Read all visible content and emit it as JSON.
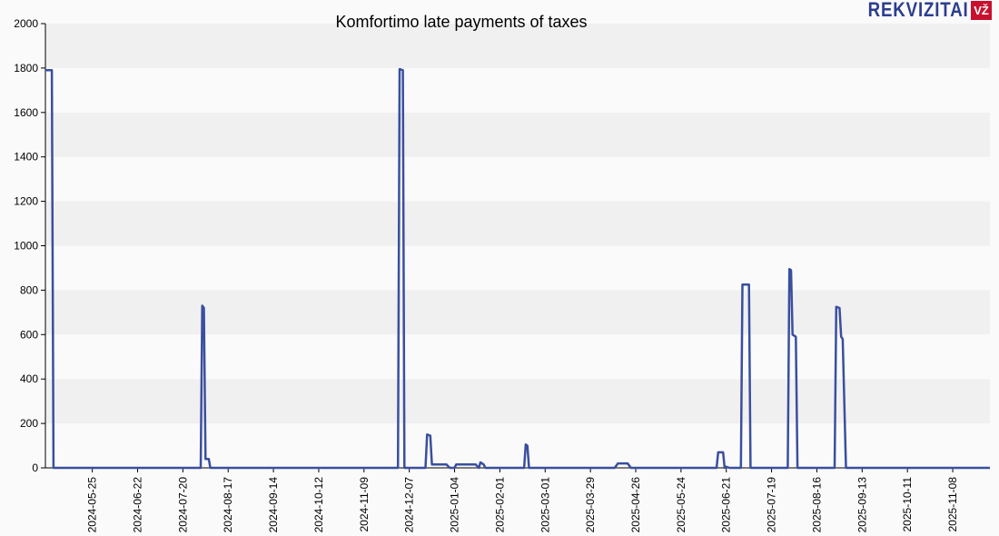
{
  "logo": {
    "text": "REKVIZITAI",
    "badge": "VŽ"
  },
  "chart_data": {
    "type": "line",
    "title": "Komfortimo late payments of taxes",
    "xlabel": "",
    "ylabel": "",
    "ylim": [
      0,
      2000
    ],
    "yticks": [
      0,
      200,
      400,
      600,
      800,
      1000,
      1200,
      1400,
      1600,
      1800,
      2000
    ],
    "xlim": [
      "2024-04-26",
      "2025-12-01"
    ],
    "xticks": [
      "2024-05-25",
      "2024-06-22",
      "2024-07-20",
      "2024-08-17",
      "2024-09-14",
      "2024-10-12",
      "2024-11-09",
      "2024-12-07",
      "2025-01-04",
      "2025-02-01",
      "2025-03-01",
      "2025-03-29",
      "2025-04-26",
      "2025-05-24",
      "2025-06-21",
      "2025-07-19",
      "2025-08-16",
      "2025-09-13",
      "2025-10-11",
      "2025-11-08"
    ],
    "grid": "horizontal bands",
    "line_color": "#3a4f9e",
    "series": [
      {
        "name": "",
        "points": [
          [
            "2024-04-26",
            1790
          ],
          [
            "2024-04-30",
            1790
          ],
          [
            "2024-05-01",
            0
          ],
          [
            "2024-07-31",
            0
          ],
          [
            "2024-08-01",
            730
          ],
          [
            "2024-08-02",
            720
          ],
          [
            "2024-08-03",
            40
          ],
          [
            "2024-08-05",
            40
          ],
          [
            "2024-08-06",
            0
          ],
          [
            "2024-11-30",
            0
          ],
          [
            "2024-12-01",
            1795
          ],
          [
            "2024-12-03",
            1790
          ],
          [
            "2024-12-04",
            0
          ],
          [
            "2024-12-17",
            0
          ],
          [
            "2024-12-18",
            150
          ],
          [
            "2024-12-20",
            145
          ],
          [
            "2024-12-21",
            15
          ],
          [
            "2024-12-30",
            15
          ],
          [
            "2025-01-01",
            0
          ],
          [
            "2025-01-04",
            0
          ],
          [
            "2025-01-05",
            15
          ],
          [
            "2025-01-17",
            15
          ],
          [
            "2025-01-19",
            0
          ],
          [
            "2025-01-20",
            25
          ],
          [
            "2025-01-22",
            15
          ],
          [
            "2025-01-23",
            0
          ],
          [
            "2025-02-16",
            0
          ],
          [
            "2025-02-17",
            105
          ],
          [
            "2025-02-18",
            100
          ],
          [
            "2025-02-19",
            0
          ],
          [
            "2025-04-13",
            0
          ],
          [
            "2025-04-15",
            20
          ],
          [
            "2025-04-21",
            20
          ],
          [
            "2025-04-23",
            0
          ],
          [
            "2025-06-15",
            0
          ],
          [
            "2025-06-16",
            70
          ],
          [
            "2025-06-19",
            70
          ],
          [
            "2025-06-20",
            0
          ],
          [
            "2025-06-21",
            5
          ],
          [
            "2025-06-23",
            0
          ],
          [
            "2025-06-30",
            0
          ],
          [
            "2025-07-01",
            825
          ],
          [
            "2025-07-05",
            825
          ],
          [
            "2025-07-06",
            0
          ],
          [
            "2025-07-29",
            0
          ],
          [
            "2025-07-30",
            895
          ],
          [
            "2025-07-31",
            890
          ],
          [
            "2025-08-01",
            600
          ],
          [
            "2025-08-03",
            590
          ],
          [
            "2025-08-04",
            0
          ],
          [
            "2025-08-27",
            0
          ],
          [
            "2025-08-28",
            725
          ],
          [
            "2025-08-30",
            720
          ],
          [
            "2025-08-31",
            590
          ],
          [
            "2025-09-01",
            580
          ],
          [
            "2025-09-03",
            0
          ],
          [
            "2025-12-01",
            0
          ]
        ]
      }
    ]
  }
}
